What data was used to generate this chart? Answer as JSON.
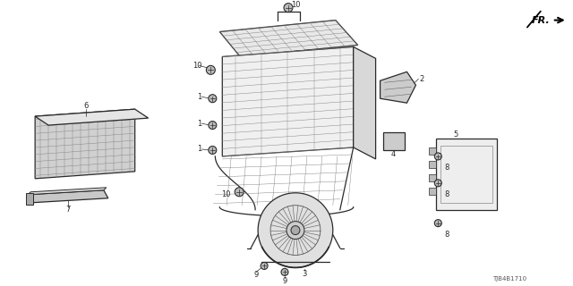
{
  "bg_color": "#ffffff",
  "line_color": "#2a2a2a",
  "label_color": "#2a2a2a",
  "figsize": [
    6.4,
    3.2
  ],
  "dpi": 100,
  "watermark": "TJB4B1710",
  "fr_label": "FR.",
  "arrow_color": "#111111",
  "grid_color": "#555555",
  "part_color": "#888888",
  "hardware_face": "#999999",
  "hardware_edge": "#333333"
}
